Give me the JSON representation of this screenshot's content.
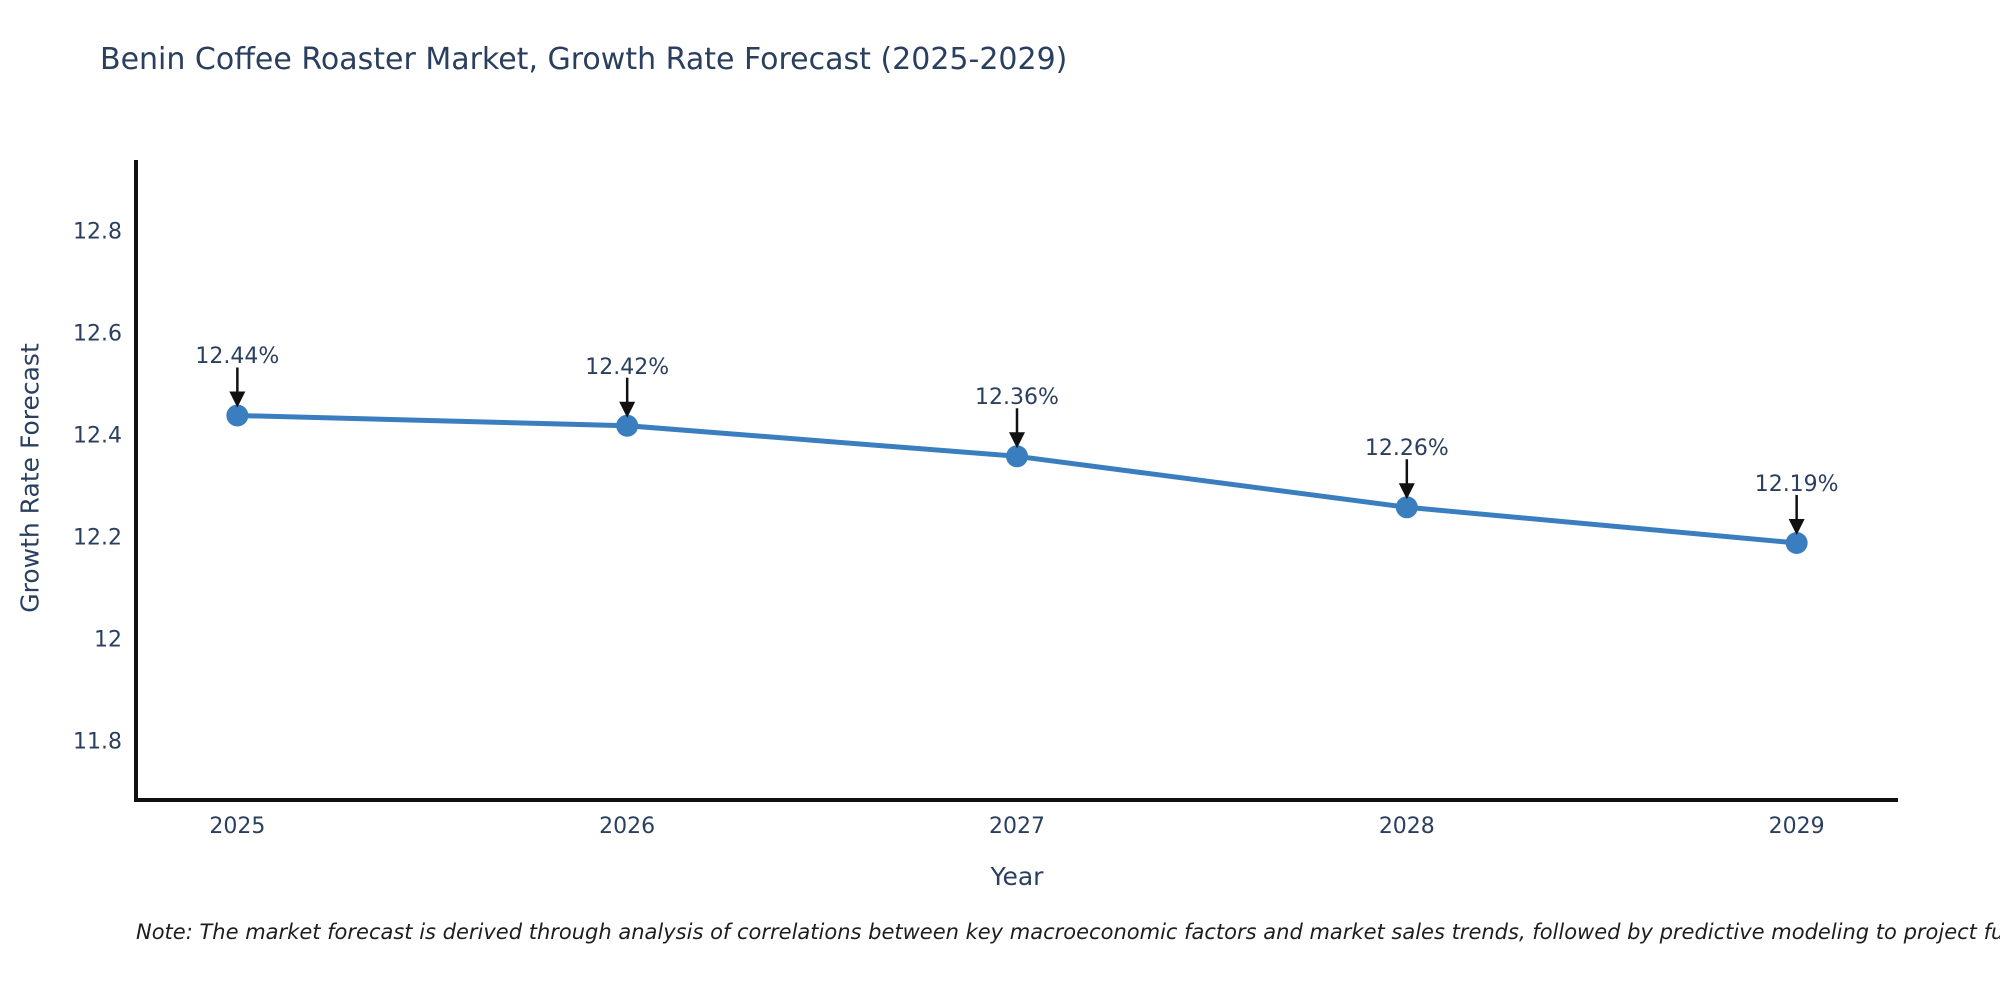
{
  "title": "Benin Coffee Roaster Market, Growth Rate Forecast (2025-2029)",
  "note": "Note: The market forecast is derived through analysis of correlations between key macroeconomic factors and market sales trends, followed by predictive modeling to project future sal",
  "chart_data": {
    "type": "line",
    "title": "Benin Coffee Roaster Market, Growth Rate Forecast (2025-2029)",
    "xlabel": "Year",
    "ylabel": "Growth Rate Forecast",
    "x": [
      2025,
      2026,
      2027,
      2028,
      2029
    ],
    "values": [
      12.44,
      12.42,
      12.36,
      12.26,
      12.19
    ],
    "point_labels": [
      "12.44%",
      "12.42%",
      "12.36%",
      "12.26%",
      "12.19%"
    ],
    "x_tick_labels": [
      "2025",
      "2026",
      "2027",
      "2028",
      "2029"
    ],
    "y_tick_values": [
      11.8,
      12.0,
      12.2,
      12.4,
      12.6,
      12.8
    ],
    "y_tick_labels": [
      "11.8",
      "12",
      "12.2",
      "12.4",
      "12.6",
      "12.8"
    ],
    "xlim": [
      2024.74,
      2029.26
    ],
    "ylim": [
      11.686,
      12.941
    ],
    "grid": false,
    "legend": false,
    "line_color": "#3a7ebf",
    "marker_color": "#3a7ebf",
    "axis_color": "#111111",
    "arrow_color": "#111111",
    "text_color": "#2a3f5f"
  }
}
